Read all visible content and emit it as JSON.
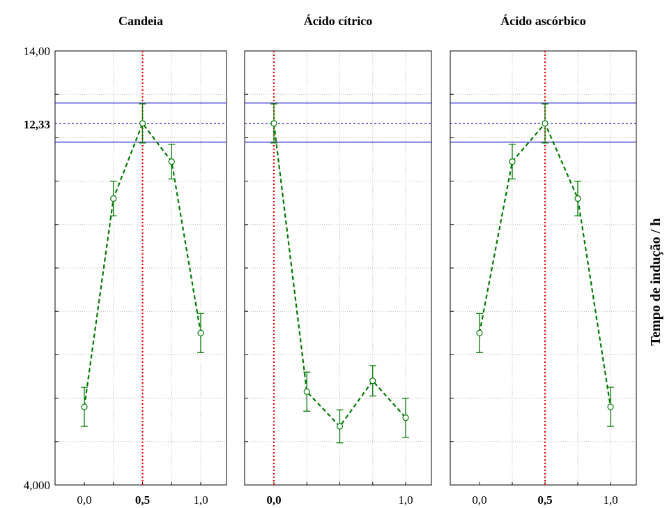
{
  "chart_data": {
    "type": "line",
    "ylabel": "Tempo de indução / h",
    "ylim": [
      4,
      14
    ],
    "y_tick_labels": [
      "4,000",
      "12,33",
      "14,00"
    ],
    "grid": true,
    "reference_lines": {
      "optimum": 12.33,
      "upper": 12.8,
      "lower": 11.9,
      "colors": {
        "band": "#1c1cc8",
        "vertical": "#ff0000"
      }
    },
    "series_color": "#007a00",
    "panels": [
      {
        "title": "Candeia",
        "x": [
          0,
          0.25,
          0.5,
          0.75,
          1.0
        ],
        "y": [
          5.8,
          10.6,
          12.33,
          11.45,
          7.5
        ],
        "err": [
          0.45,
          0.4,
          0.45,
          0.4,
          0.45
        ],
        "x_tick_labels": [
          "0,0",
          "0,5",
          "1,0"
        ],
        "x_tick_values": [
          0,
          0.5,
          1.0
        ],
        "highlight_x": 0.5
      },
      {
        "title": "Ácido cítrico",
        "x": [
          0,
          0.25,
          0.5,
          0.75,
          1.0
        ],
        "y": [
          12.33,
          6.15,
          5.35,
          6.4,
          5.55
        ],
        "err": [
          0.45,
          0.45,
          0.38,
          0.35,
          0.45
        ],
        "x_tick_labels": [
          "0,0",
          "1,0"
        ],
        "x_tick_values": [
          0,
          1.0
        ],
        "highlight_x": 0
      },
      {
        "title": "Ácido ascórbico",
        "x": [
          0,
          0.25,
          0.5,
          0.75,
          1.0
        ],
        "y": [
          7.5,
          11.45,
          12.33,
          10.6,
          5.8
        ],
        "err": [
          0.45,
          0.4,
          0.45,
          0.4,
          0.45
        ],
        "x_tick_labels": [
          "0,0",
          "0,5",
          "1,0"
        ],
        "x_tick_values": [
          0,
          0.5,
          1.0
        ],
        "highlight_x": 0.5
      }
    ]
  }
}
